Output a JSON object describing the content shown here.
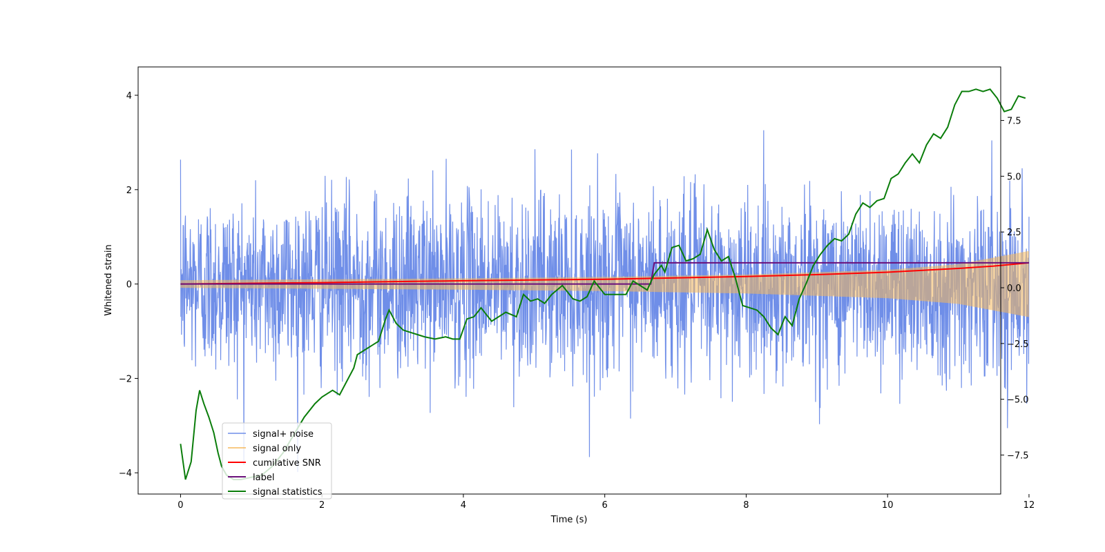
{
  "chart_data": {
    "type": "line",
    "title": "",
    "xlabel": "Time (s)",
    "ylabel": "Whitened strain",
    "y2label": "",
    "xlim": [
      -0.6,
      11.6
    ],
    "ylim": [
      -4.45,
      4.6
    ],
    "y2lim": [
      -9.25,
      9.9
    ],
    "xticks": [
      0,
      2,
      4,
      6,
      8,
      10,
      12
    ],
    "yticks": [
      -4,
      -2,
      0,
      2,
      4
    ],
    "y2ticks": [
      -7.5,
      -5.0,
      -2.5,
      0.0,
      2.5,
      5.0,
      7.5
    ],
    "xtick_labels": [
      "0",
      "2",
      "4",
      "6",
      "8",
      "10",
      "12"
    ],
    "ytick_labels": [
      "−4",
      "−2",
      "0",
      "2",
      "4"
    ],
    "y2tick_labels": [
      "−7.5",
      "−5.0",
      "−2.5",
      "0.0",
      "2.5",
      "5.0",
      "7.5"
    ],
    "grid": false,
    "legend_position": "lower-left",
    "colors": {
      "signal_noise": "#6f8ee8",
      "signal_only": "#f5b85a",
      "cumulative_snr": "#ff0000",
      "label": "#6a0f7a",
      "signal_statistics": "#0a7d0a"
    },
    "series": [
      {
        "key": "signal_noise",
        "name": "signal+ noise",
        "axis": "left",
        "description_envelope": {
          "t": [
            0,
            12
          ],
          "typical_abs": 1.5,
          "peak_abs": 4.15
        }
      },
      {
        "key": "signal_only",
        "name": "signal only",
        "axis": "left",
        "envelope": {
          "t": [
            0,
            2,
            4,
            6,
            8,
            10,
            11,
            12
          ],
          "amp": [
            0.08,
            0.1,
            0.12,
            0.15,
            0.2,
            0.3,
            0.42,
            0.7
          ]
        }
      },
      {
        "key": "cumulative_snr",
        "name": "cumilative SNR",
        "axis": "left",
        "x": [
          0,
          2,
          4,
          6,
          7,
          8,
          9,
          10,
          10.5,
          11,
          11.5,
          12
        ],
        "y": [
          0.0,
          0.03,
          0.07,
          0.1,
          0.13,
          0.16,
          0.2,
          0.25,
          0.29,
          0.33,
          0.38,
          0.45
        ]
      },
      {
        "key": "label",
        "name": "label",
        "axis": "left",
        "x": [
          0,
          6.65,
          6.7,
          12
        ],
        "y": [
          0,
          0,
          0.45,
          0.45
        ]
      },
      {
        "key": "signal_statistics",
        "name": "signal statistics",
        "axis": "right",
        "x": [
          0.0,
          0.07,
          0.15,
          0.22,
          0.27,
          0.33,
          0.4,
          0.47,
          0.53,
          0.58,
          0.65,
          0.75,
          0.85,
          1.0,
          1.15,
          1.3,
          1.45,
          1.6,
          1.75,
          1.9,
          2.0,
          2.15,
          2.25,
          2.35,
          2.45,
          2.5,
          2.6,
          2.7,
          2.8,
          2.9,
          2.95,
          3.05,
          3.15,
          3.25,
          3.35,
          3.45,
          3.6,
          3.75,
          3.85,
          3.95,
          4.05,
          4.15,
          4.25,
          4.4,
          4.6,
          4.75,
          4.85,
          4.95,
          5.05,
          5.15,
          5.25,
          5.4,
          5.55,
          5.65,
          5.75,
          5.85,
          6.0,
          6.15,
          6.3,
          6.4,
          6.5,
          6.6,
          6.7,
          6.8,
          6.85,
          6.95,
          7.05,
          7.15,
          7.25,
          7.35,
          7.45,
          7.55,
          7.65,
          7.75,
          7.85,
          7.95,
          8.05,
          8.15,
          8.25,
          8.35,
          8.45,
          8.55,
          8.65,
          8.75,
          8.85,
          8.95,
          9.05,
          9.15,
          9.25,
          9.35,
          9.45,
          9.55,
          9.65,
          9.75,
          9.85,
          9.95,
          10.05,
          10.15,
          10.25,
          10.35,
          10.45,
          10.55,
          10.65,
          10.75,
          10.85,
          10.95,
          11.05,
          11.15,
          11.25,
          11.35,
          11.45,
          11.55,
          11.65,
          11.75,
          11.85,
          11.95
        ],
        "y": [
          -7.0,
          -8.6,
          -7.8,
          -5.5,
          -4.6,
          -5.2,
          -5.8,
          -6.5,
          -7.4,
          -8.0,
          -8.4,
          -8.6,
          -8.6,
          -8.5,
          -8.4,
          -8.0,
          -7.4,
          -6.6,
          -5.8,
          -5.2,
          -4.9,
          -4.6,
          -4.8,
          -4.2,
          -3.6,
          -3.0,
          -2.8,
          -2.6,
          -2.4,
          -1.4,
          -1.0,
          -1.6,
          -1.9,
          -2.0,
          -2.1,
          -2.2,
          -2.3,
          -2.2,
          -2.3,
          -2.3,
          -1.4,
          -1.3,
          -0.9,
          -1.5,
          -1.1,
          -1.3,
          -0.3,
          -0.6,
          -0.5,
          -0.7,
          -0.3,
          0.1,
          -0.5,
          -0.6,
          -0.4,
          0.3,
          -0.3,
          -0.3,
          -0.3,
          0.3,
          0.1,
          -0.1,
          0.6,
          1.0,
          0.7,
          1.8,
          1.9,
          1.2,
          1.3,
          1.5,
          2.6,
          1.7,
          1.2,
          1.4,
          0.4,
          -0.8,
          -0.9,
          -1.0,
          -1.3,
          -1.8,
          -2.1,
          -1.3,
          -1.7,
          -0.5,
          0.2,
          1.0,
          1.5,
          1.9,
          2.2,
          2.1,
          2.4,
          3.3,
          3.8,
          3.6,
          3.9,
          4.0,
          4.9,
          5.1,
          5.6,
          6.0,
          5.6,
          6.4,
          6.9,
          6.7,
          7.2,
          8.2,
          8.8,
          8.8,
          8.9,
          8.8,
          8.9,
          8.5,
          7.9,
          8.0,
          8.6,
          8.5
        ]
      }
    ]
  }
}
